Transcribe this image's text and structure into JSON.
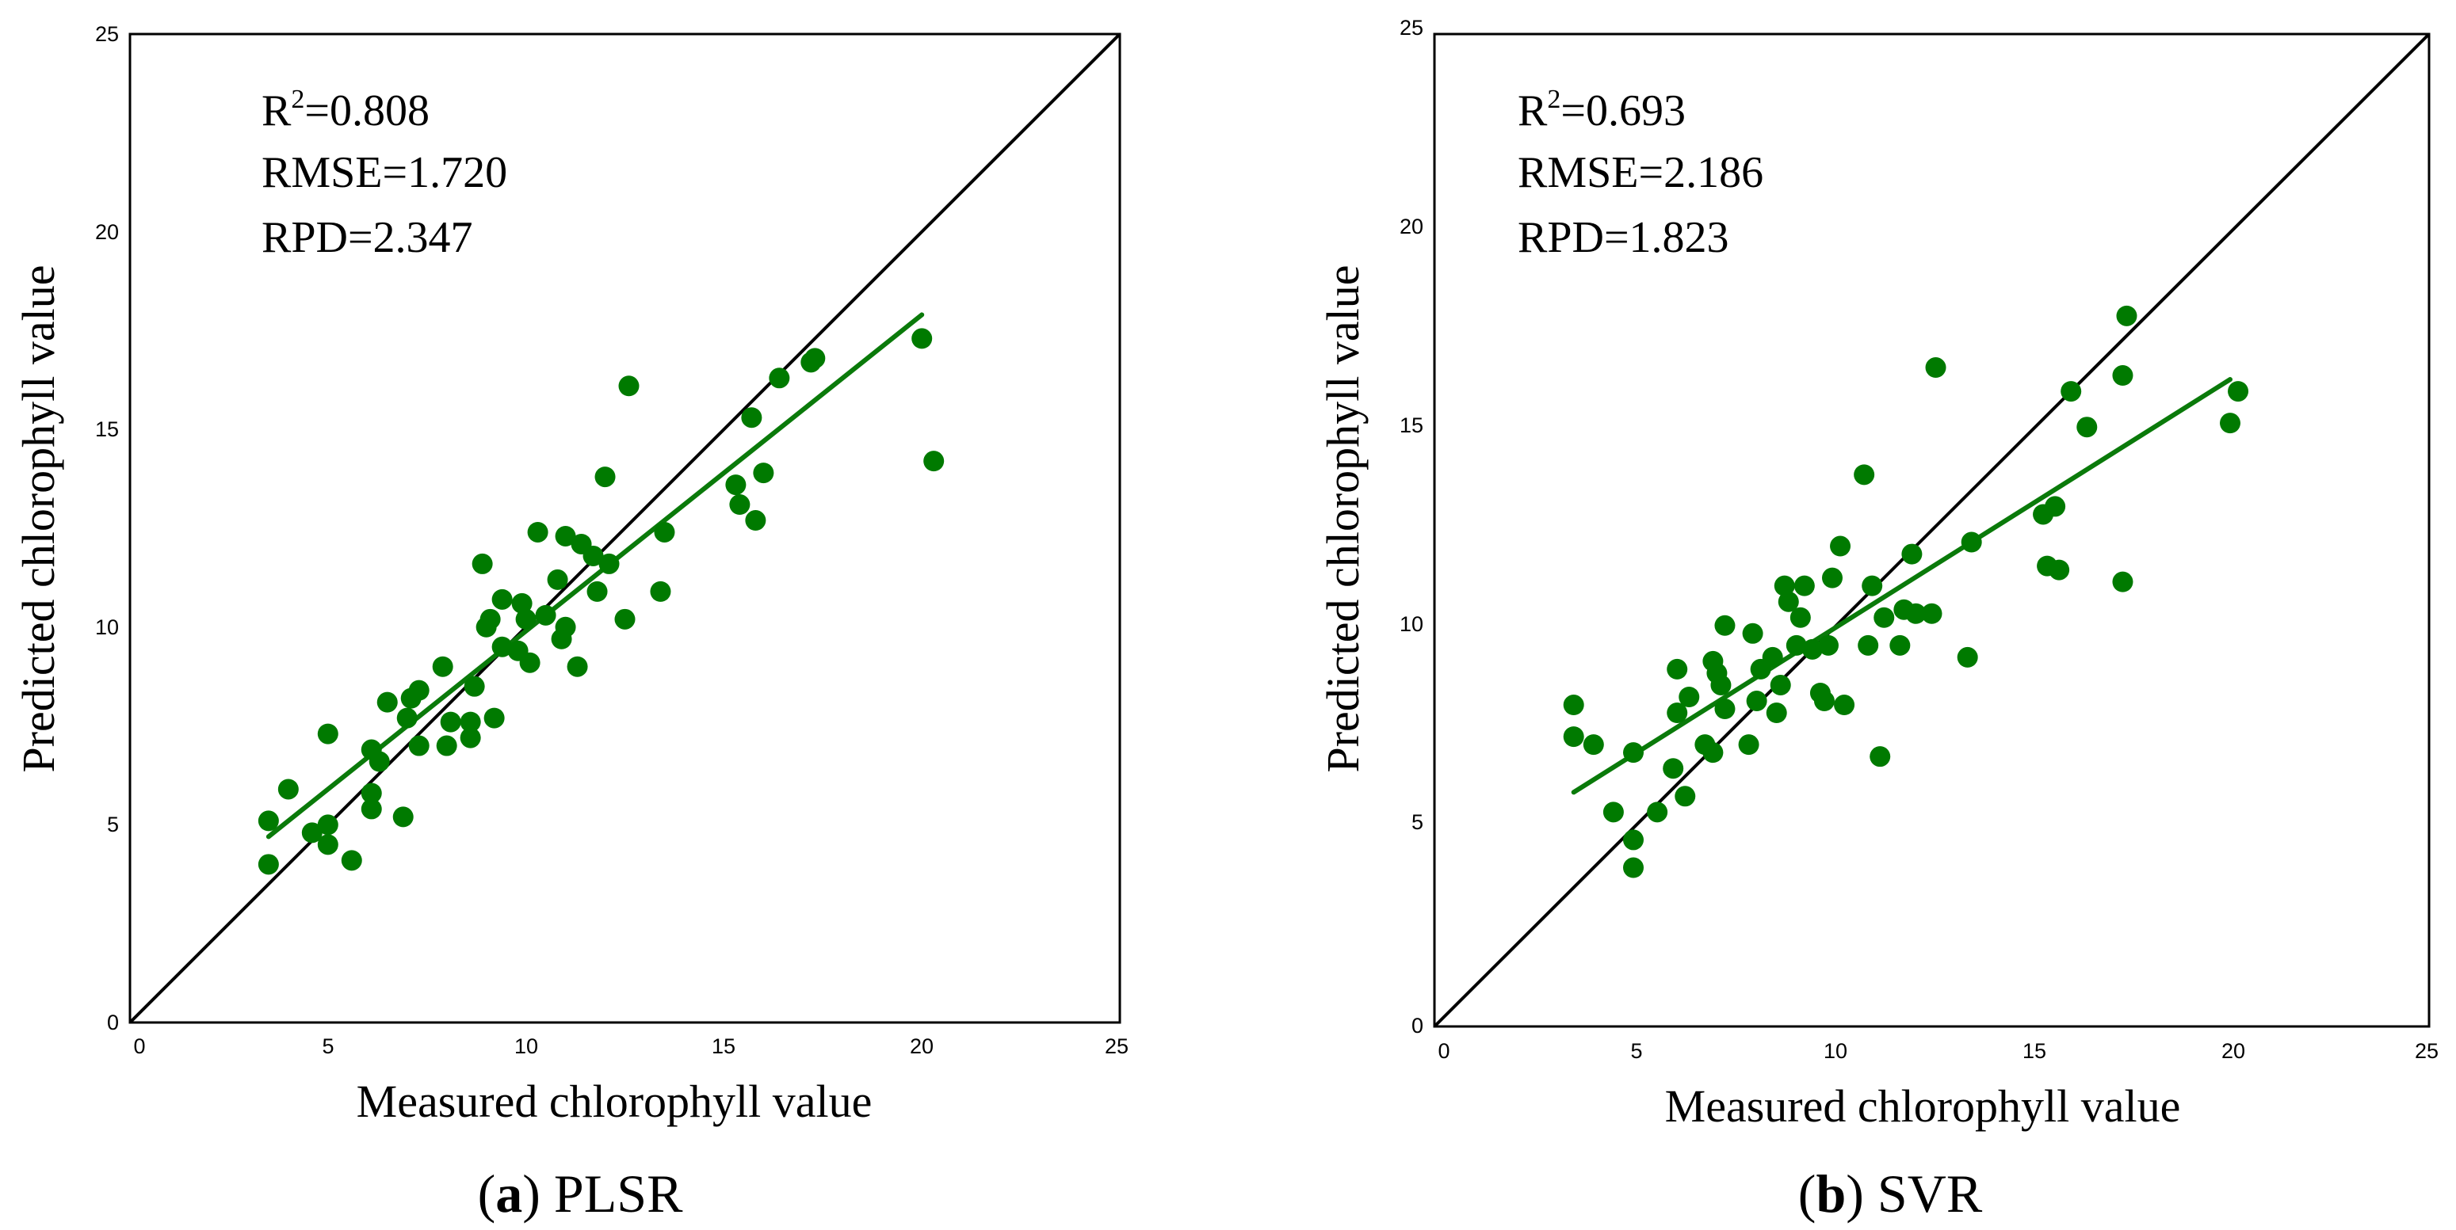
{
  "chart_data": [
    {
      "type": "scatter",
      "panel_label": "a",
      "method": "PLSR",
      "xlabel": "Measured chlorophyll value",
      "ylabel": "Predicted chlorophyll value",
      "xlim": [
        0,
        25
      ],
      "ylim": [
        0,
        25
      ],
      "xticks": [
        "0",
        "5",
        "10",
        "15",
        "20",
        "25"
      ],
      "yticks": [
        "0",
        "5",
        "10",
        "15",
        "20",
        "25"
      ],
      "stats": {
        "r2_prefix": "R",
        "r2_sup": "2",
        "r2_value": "=0.808",
        "rmse": "RMSE=1.720",
        "rpd": "RPD=2.347"
      },
      "colors": {
        "points": "#007a00",
        "fit": "#0a7a0a",
        "identity": "#000000"
      },
      "identity_line": [
        [
          0,
          0
        ],
        [
          25,
          25
        ]
      ],
      "fit_line": [
        [
          3.5,
          4.7
        ],
        [
          20.0,
          17.9
        ]
      ],
      "points": [
        [
          3.5,
          5.1
        ],
        [
          3.5,
          4.0
        ],
        [
          4.0,
          5.9
        ],
        [
          4.6,
          4.8
        ],
        [
          5.0,
          7.3
        ],
        [
          5.0,
          5.0
        ],
        [
          5.0,
          4.5
        ],
        [
          5.6,
          4.1
        ],
        [
          6.1,
          5.8
        ],
        [
          6.1,
          6.9
        ],
        [
          6.1,
          5.4
        ],
        [
          6.3,
          6.6
        ],
        [
          6.5,
          8.1
        ],
        [
          6.9,
          5.2
        ],
        [
          7.0,
          7.7
        ],
        [
          7.1,
          8.2
        ],
        [
          7.3,
          8.4
        ],
        [
          7.3,
          7.0
        ],
        [
          7.9,
          9.0
        ],
        [
          8.0,
          7.0
        ],
        [
          8.1,
          7.6
        ],
        [
          8.6,
          7.2
        ],
        [
          8.6,
          7.6
        ],
        [
          8.7,
          8.5
        ],
        [
          8.9,
          11.6
        ],
        [
          9.0,
          10.0
        ],
        [
          9.1,
          10.2
        ],
        [
          9.2,
          7.7
        ],
        [
          9.4,
          9.5
        ],
        [
          9.4,
          10.7
        ],
        [
          9.8,
          9.4
        ],
        [
          9.9,
          10.6
        ],
        [
          10.0,
          10.2
        ],
        [
          10.1,
          9.1
        ],
        [
          10.3,
          12.4
        ],
        [
          10.5,
          10.3
        ],
        [
          10.8,
          11.2
        ],
        [
          10.9,
          9.7
        ],
        [
          11.0,
          12.3
        ],
        [
          11.0,
          10.0
        ],
        [
          11.3,
          9.0
        ],
        [
          11.4,
          12.1
        ],
        [
          11.7,
          11.8
        ],
        [
          11.8,
          10.9
        ],
        [
          12.0,
          13.8
        ],
        [
          12.1,
          11.6
        ],
        [
          12.5,
          10.2
        ],
        [
          12.6,
          16.1
        ],
        [
          13.4,
          10.9
        ],
        [
          13.5,
          12.4
        ],
        [
          15.3,
          13.6
        ],
        [
          15.4,
          13.1
        ],
        [
          15.7,
          15.3
        ],
        [
          15.8,
          12.7
        ],
        [
          16.0,
          13.9
        ],
        [
          16.4,
          16.3
        ],
        [
          17.2,
          16.7
        ],
        [
          17.3,
          16.8
        ],
        [
          20.0,
          17.3
        ],
        [
          20.3,
          14.2
        ]
      ]
    },
    {
      "type": "scatter",
      "panel_label": "b",
      "method": "SVR",
      "xlabel": "Measured chlorophyll value",
      "ylabel": "Predicted chlorophyll value",
      "xlim": [
        0,
        25
      ],
      "ylim": [
        0,
        25
      ],
      "xticks": [
        "0",
        "5",
        "10",
        "15",
        "20",
        "25"
      ],
      "yticks": [
        "0",
        "5",
        "10",
        "15",
        "20",
        "25"
      ],
      "stats": {
        "r2_prefix": "R",
        "r2_sup": "2",
        "r2_value": "=0.693",
        "rmse": "RMSE=2.186",
        "rpd": "RPD=1.823"
      },
      "colors": {
        "points": "#007a00",
        "fit": "#0a7a0a",
        "identity": "#000000"
      },
      "identity_line": [
        [
          0,
          0
        ],
        [
          25,
          25
        ]
      ],
      "fit_line": [
        [
          3.5,
          5.9
        ],
        [
          20.0,
          16.3
        ]
      ],
      "points": [
        [
          3.5,
          8.1
        ],
        [
          3.5,
          7.3
        ],
        [
          4.0,
          7.1
        ],
        [
          4.5,
          5.4
        ],
        [
          5.0,
          6.9
        ],
        [
          5.0,
          4.7
        ],
        [
          5.0,
          4.0
        ],
        [
          5.6,
          5.4
        ],
        [
          6.0,
          6.5
        ],
        [
          6.1,
          9.0
        ],
        [
          6.1,
          7.9
        ],
        [
          6.3,
          5.8
        ],
        [
          6.4,
          8.3
        ],
        [
          6.8,
          7.1
        ],
        [
          7.0,
          9.2
        ],
        [
          7.0,
          6.9
        ],
        [
          7.1,
          8.9
        ],
        [
          7.2,
          8.6
        ],
        [
          7.3,
          8.0
        ],
        [
          7.3,
          10.1
        ],
        [
          7.9,
          7.1
        ],
        [
          8.0,
          9.9
        ],
        [
          8.1,
          8.2
        ],
        [
          8.2,
          9.0
        ],
        [
          8.5,
          9.3
        ],
        [
          8.6,
          7.9
        ],
        [
          8.7,
          8.6
        ],
        [
          8.8,
          11.1
        ],
        [
          8.9,
          10.7
        ],
        [
          9.1,
          9.6
        ],
        [
          9.2,
          10.3
        ],
        [
          9.3,
          11.1
        ],
        [
          9.5,
          9.5
        ],
        [
          9.7,
          8.4
        ],
        [
          9.8,
          8.2
        ],
        [
          9.9,
          9.6
        ],
        [
          10.0,
          11.3
        ],
        [
          10.2,
          12.1
        ],
        [
          10.3,
          8.1
        ],
        [
          10.8,
          13.9
        ],
        [
          10.9,
          9.6
        ],
        [
          11.0,
          11.1
        ],
        [
          11.2,
          6.8
        ],
        [
          11.3,
          10.3
        ],
        [
          11.7,
          9.6
        ],
        [
          11.8,
          10.5
        ],
        [
          12.0,
          11.9
        ],
        [
          12.1,
          10.4
        ],
        [
          12.5,
          10.4
        ],
        [
          12.6,
          16.6
        ],
        [
          13.4,
          9.3
        ],
        [
          13.5,
          12.2
        ],
        [
          15.3,
          12.9
        ],
        [
          15.4,
          11.6
        ],
        [
          15.6,
          13.1
        ],
        [
          15.7,
          11.5
        ],
        [
          16.0,
          16.0
        ],
        [
          16.4,
          15.1
        ],
        [
          17.3,
          11.2
        ],
        [
          17.3,
          16.4
        ],
        [
          17.4,
          17.9
        ],
        [
          20.0,
          15.2
        ],
        [
          20.2,
          16.0
        ]
      ]
    }
  ]
}
